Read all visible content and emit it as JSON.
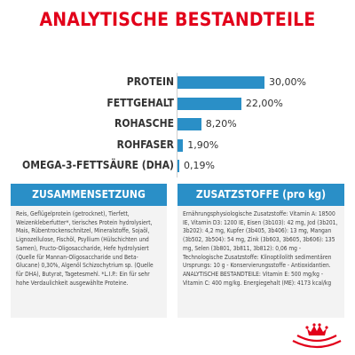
{
  "title": "ANALYTISCHE BESTANDTEILE",
  "colors": {
    "accent": "#e2001a",
    "bar": "#2a8fc7",
    "panel_bg": "#f3f3f3"
  },
  "chart_data": {
    "type": "bar",
    "orientation": "horizontal",
    "categories": [
      "PROTEIN",
      "FETTGEHALT",
      "ROHASCHE",
      "ROHFASER",
      "OMEGA-3-FETTSÄURE (DHA)"
    ],
    "values": [
      30.0,
      22.0,
      8.2,
      1.9,
      0.19
    ],
    "value_labels": [
      "30,00%",
      "22,00%",
      "8,20%",
      "1,90%",
      "0,19%"
    ],
    "grid": false,
    "xlim": [
      0,
      30
    ]
  },
  "left_panel": {
    "heading": "ZUSAMMENSETZUNG",
    "text": "Reis, Geflügelprotein (getrocknet), Tierfett, Weizenkleberfutter*, tierisches Protein hydrolysiert, Mais, Rübentrockenschnitzel, Mineralstoffe, Sojaöl, Lignozellulose, Fischöl, Psyllium (Hülschichten und Samen), Fructo-Oligosaccharide, Hefe hydrolysiert (Quelle für Mannan-Oligosaccharide und Beta-Glucane) 0,30%, Algenöl Schizochytrium sp. (Quelle für DHA), Butyrat, Tagetesmehl. *L.I.P.: Ein für sehr hohe Verdaulichkeit ausgewählte Proteine."
  },
  "right_panel": {
    "heading": "ZUSATZSTOFFE (pro kg)",
    "text": "Ernährungsphysiologische Zusatzstoffe: Vitamin A: 18500 IE, Vitamin D3: 1200 IE, Eisen (3b103): 42 mg, Jod (3b201, 3b202): 4,2 mg, Kupfer (3b405, 3b406): 13 mg, Mangan (3b502, 3b504): 54 mg, Zink (3b603, 3b605, 3b606): 135 mg, Selen (3b801, 3b811, 3b812): 0,06 mg - Technologische Zusatzstoffe: Klinoptilolith sedimentären Ursprungs: 10 g - Konservierungsstoffe - Antioxidantien. ANALYTISCHE BESTANDTEILE: Vitamin E: 500 mg/kg - Vitamin C: 400 mg/kg. Energiegehalt (ME): 4173 kcal/kg"
  },
  "logo": {
    "icon": "royal-canin-crown-logo"
  }
}
